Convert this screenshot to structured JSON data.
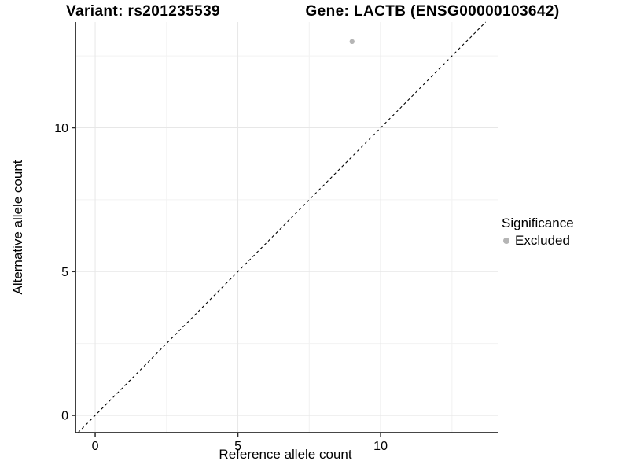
{
  "chart_data": {
    "type": "scatter",
    "titles": [
      "Variant: rs201235539",
      "Gene: LACTB (ENSG00000103642)"
    ],
    "xlabel": "Reference allele count",
    "ylabel": "Alternative allele count",
    "xlim": [
      -0.69,
      14.13
    ],
    "ylim": [
      -0.6,
      13.68
    ],
    "xticks": [
      0,
      5,
      10
    ],
    "yticks": [
      0,
      5,
      10
    ],
    "x_minor": [
      2.5,
      7.5,
      12.5
    ],
    "y_minor": [
      2.5,
      7.5,
      12.5
    ],
    "series": [
      {
        "name": "Excluded",
        "color": "#b5b5b5",
        "points": [
          [
            9,
            13
          ]
        ]
      }
    ],
    "reference_line": {
      "kind": "identity",
      "from": -0.6,
      "to": 13.68,
      "stroke": "#000000",
      "dash": "3.5,3.5"
    },
    "legend": {
      "title": "Significance",
      "position": "right-middle",
      "items": [
        {
          "label": "Excluded",
          "color": "#b5b5b5",
          "marker": "circle"
        }
      ]
    },
    "grid": {
      "major_color": "#e7e7e7",
      "minor_color": "#f2f2f2"
    },
    "axis": {
      "line_color": "#2b2b2b",
      "tick_color": "#2b2b2b",
      "tick_length": 5,
      "text_color": "#000000",
      "tick_font_size": 16
    }
  }
}
